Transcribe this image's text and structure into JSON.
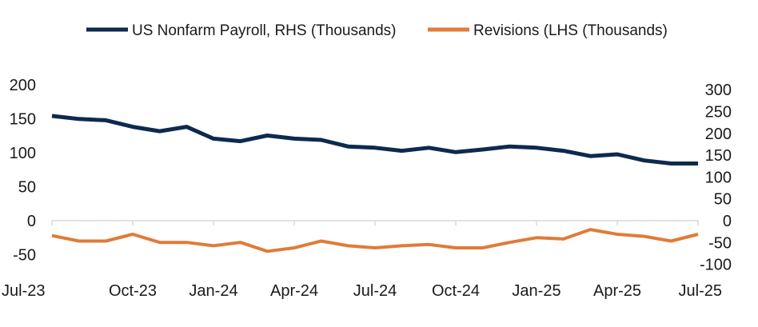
{
  "chart_data": {
    "type": "line",
    "title": "",
    "legend": [
      {
        "name": "US Nonfarm Payroll, RHS (Thousands)",
        "color": "#0d2a4e"
      },
      {
        "name": "Revisions (LHS (Thousands)",
        "color": "#e07b39"
      }
    ],
    "categories": [
      "Jul-23",
      "Aug-23",
      "Sep-23",
      "Oct-23",
      "Nov-23",
      "Dec-23",
      "Jan-24",
      "Feb-24",
      "Mar-24",
      "Apr-24",
      "May-24",
      "Jun-24",
      "Jul-24",
      "Aug-24",
      "Sep-24",
      "Oct-24",
      "Nov-24",
      "Dec-24",
      "Jan-25",
      "Feb-25",
      "Mar-25",
      "Apr-25",
      "May-25",
      "Jun-25",
      "Jul-25"
    ],
    "x_tick_labels": [
      "Jul-23",
      "Oct-23",
      "Jan-24",
      "Apr-24",
      "Jul-24",
      "Oct-24",
      "Jan-25",
      "Apr-25",
      "Jul-25"
    ],
    "left_axis": {
      "ylim": [
        -75,
        225
      ],
      "ticks": [
        "200",
        "150",
        "100",
        "50",
        "0",
        "-50"
      ],
      "tick_values": [
        200,
        150,
        100,
        50,
        0,
        -50
      ]
    },
    "right_axis": {
      "ylim": [
        -100,
        350
      ],
      "ticks": [
        "300",
        "250",
        "200",
        "150",
        "100",
        "50",
        "0",
        "-50",
        "-100"
      ],
      "tick_values": [
        300,
        250,
        200,
        150,
        100,
        50,
        0,
        -50,
        -100
      ]
    },
    "series": [
      {
        "name": "US Nonfarm Payroll, RHS (Thousands)",
        "axis": "right",
        "color": "#0d2a4e",
        "values": [
          240,
          233,
          230,
          215,
          205,
          215,
          188,
          182,
          195,
          188,
          185,
          170,
          167,
          160,
          167,
          157,
          163,
          170,
          167,
          160,
          148,
          152,
          138,
          131,
          131
        ]
      },
      {
        "name": "Revisions (LHS (Thousands)",
        "axis": "left",
        "color": "#e07b39",
        "values": [
          -22,
          -30,
          -30,
          -20,
          -32,
          -32,
          -37,
          -32,
          -45,
          -40,
          -30,
          -37,
          -40,
          -37,
          -35,
          -40,
          -40,
          -32,
          -25,
          -27,
          -13,
          -20,
          -23,
          -30,
          -20
        ]
      }
    ]
  }
}
